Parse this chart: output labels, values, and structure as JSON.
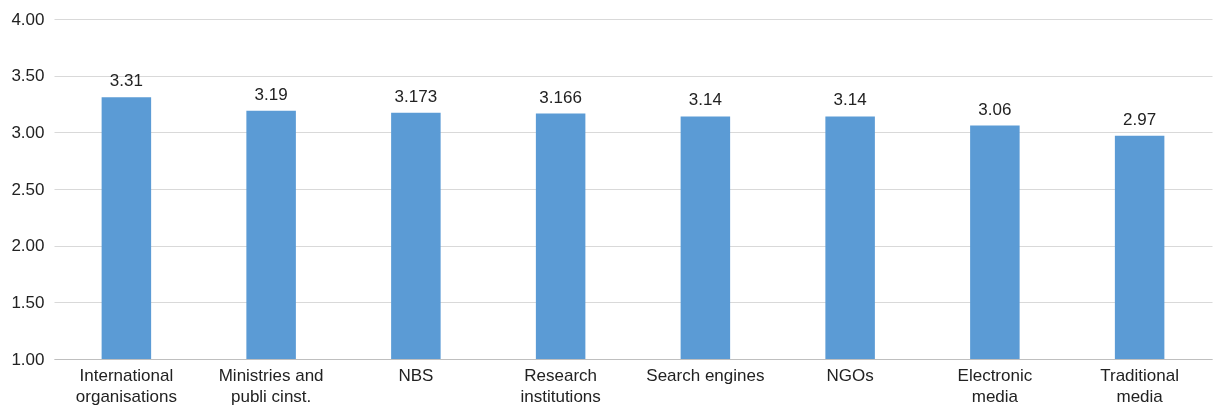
{
  "chart_data": {
    "type": "bar",
    "categories": [
      "International organisations",
      "Ministries and publi cinst.",
      "NBS",
      "Research institutions",
      "Search engines",
      "NGOs",
      "Electronic media",
      "Traditional media"
    ],
    "values": [
      3.31,
      3.19,
      3.173,
      3.166,
      3.14,
      3.14,
      3.06,
      2.97
    ],
    "color": "#5b9bd5",
    "data_labels": true,
    "grid": "y",
    "ylim": [
      1,
      4
    ],
    "yticks": [
      {
        "value": 1,
        "label": "1.00"
      },
      {
        "value": 1.5,
        "label": "1.50"
      },
      {
        "value": 2,
        "label": "2.00"
      },
      {
        "value": 2.5,
        "label": "2.50"
      },
      {
        "value": 3,
        "label": "3.00"
      },
      {
        "value": 3.5,
        "label": "3.50"
      },
      {
        "value": 4,
        "label": "4.00"
      }
    ]
  }
}
